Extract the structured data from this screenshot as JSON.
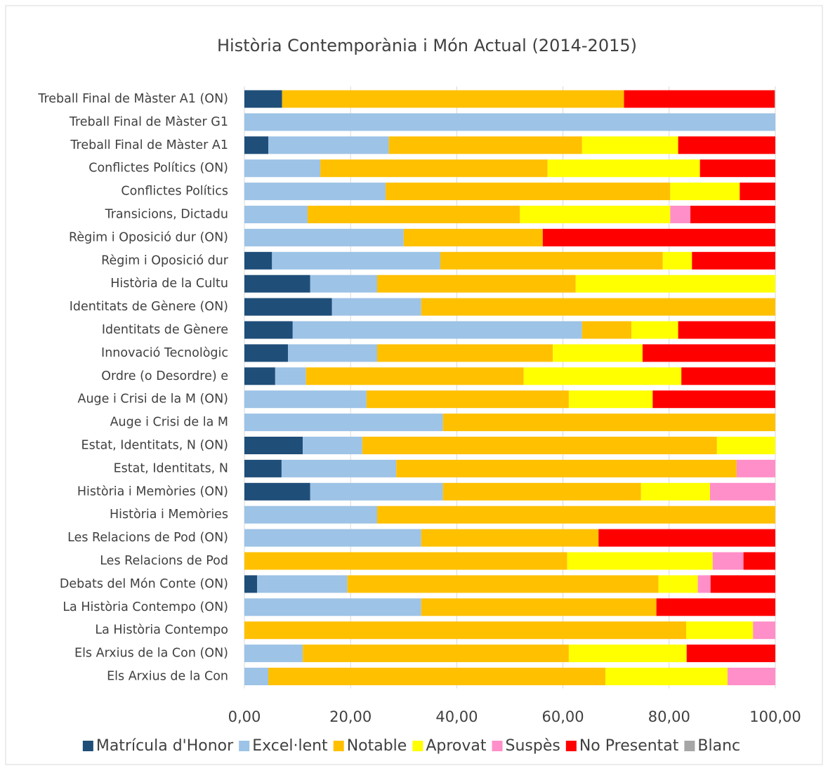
{
  "chart_data": {
    "type": "stacked_bar_horizontal",
    "title": "Història Contemporània i Món Actual (2014-2015)",
    "categories": [
      "Treball Final de Màster A1 (ON)",
      "Treball Final de Màster G1",
      "Treball Final de Màster A1",
      "Conflictes Polítics (ON)",
      "Conflictes Polítics",
      "Transicions, Dictadu",
      "Règim i Oposició dur (ON)",
      "Règim i Oposició dur",
      "Història de la Cultu",
      "Identitats de Gènere (ON)",
      "Identitats de Gènere",
      "Innovació Tecnològic",
      "Ordre (o Desordre) e",
      "Auge i Crisi de la M (ON)",
      "Auge i Crisi de la M",
      "Estat, Identitats, N (ON)",
      "Estat, Identitats, N",
      "Història i Memòries (ON)",
      "Història i Memòries",
      "Les Relacions de Pod (ON)",
      "Les Relacions de Pod",
      "Debats del Món Conte (ON)",
      "La Història Contempo (ON)",
      "La Història Contempo",
      "Els Arxius de la Con (ON)",
      "Els Arxius de la Con"
    ],
    "series": [
      {
        "name": "Matrícula d'Honor",
        "color": "#1f4e79",
        "values": [
          7.1,
          0,
          4.5,
          0,
          0,
          0,
          0,
          5.2,
          12.4,
          16.5,
          9.1,
          8.2,
          5.8,
          0,
          0,
          11,
          7,
          12.4,
          0,
          0,
          0,
          2.4,
          0,
          0,
          0,
          0
        ]
      },
      {
        "name": "Excel·lent",
        "color": "#9dc3e6",
        "values": [
          0,
          100,
          22.7,
          14.3,
          26.6,
          11.9,
          30,
          31.7,
          12.6,
          16.8,
          54.5,
          16.8,
          5.8,
          23,
          37.4,
          11.2,
          21.6,
          25,
          25,
          33.3,
          0,
          17,
          33.3,
          0,
          11,
          4.5
        ]
      },
      {
        "name": "Notable",
        "color": "#ffc000",
        "values": [
          64.4,
          0,
          36.4,
          42.8,
          53.6,
          40,
          26.2,
          41.9,
          37.4,
          66.7,
          9.3,
          33.1,
          41,
          38.1,
          62.6,
          66.8,
          64.1,
          37.3,
          75,
          33.4,
          60.8,
          58.6,
          44.3,
          83.2,
          50.1,
          63.5
        ]
      },
      {
        "name": "Aprovat",
        "color": "#ffff00",
        "values": [
          0,
          0,
          18.1,
          28.7,
          13.1,
          28.3,
          0,
          5.5,
          37.6,
          0,
          8.8,
          16.9,
          29.7,
          15.8,
          0,
          11,
          0,
          13,
          0,
          0,
          27.4,
          7.4,
          0,
          12.6,
          22.2,
          23
        ]
      },
      {
        "name": "Suspès",
        "color": "#ff8fc8",
        "values": [
          0,
          0,
          0,
          0,
          0,
          3.8,
          0,
          0,
          0,
          0,
          0,
          0,
          0,
          0,
          0,
          0,
          7.3,
          12.3,
          0,
          0,
          5.8,
          2.4,
          0,
          4.2,
          0,
          9
        ]
      },
      {
        "name": "No Presentat",
        "color": "#ff0000",
        "values": [
          28.4,
          0,
          18.3,
          14.2,
          6.7,
          16,
          43.8,
          15.7,
          0,
          0,
          18.3,
          25,
          17.7,
          23.1,
          0,
          0,
          0,
          0,
          0,
          33.3,
          6,
          12.2,
          22.4,
          0,
          16.7,
          0
        ]
      },
      {
        "name": "Blanc",
        "color": "#a6a6a6",
        "values": [
          0,
          0,
          0,
          0,
          0,
          0,
          0,
          0,
          0,
          0,
          0,
          0,
          0,
          0,
          0,
          0,
          0,
          0,
          0,
          0,
          0,
          0,
          0,
          0,
          0,
          0
        ]
      }
    ],
    "xlim": [
      0,
      100
    ],
    "xticks": [
      {
        "value": 0,
        "label": "0,00"
      },
      {
        "value": 20,
        "label": "20,00"
      },
      {
        "value": 40,
        "label": "40,00"
      },
      {
        "value": 60,
        "label": "60,00"
      },
      {
        "value": 80,
        "label": "80,00"
      },
      {
        "value": 100,
        "label": "100,00"
      }
    ],
    "grid": true,
    "legend": "bottom"
  }
}
